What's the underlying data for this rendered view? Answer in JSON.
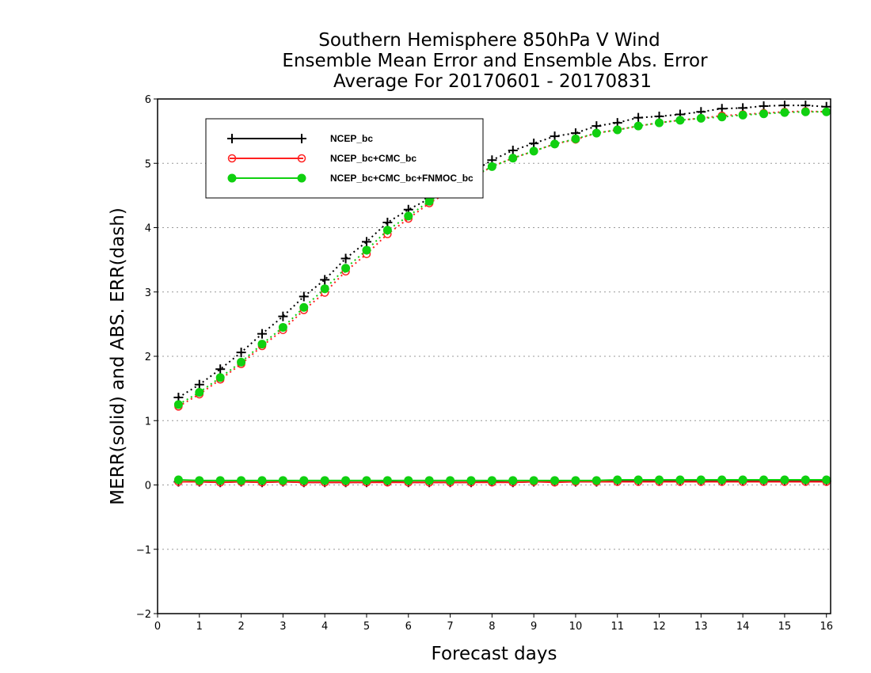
{
  "chart_data": {
    "type": "line",
    "title": [
      "Southern Hemisphere 850hPa V Wind",
      "Ensemble Mean Error and Ensemble Abs. Error",
      "Average For 20170601 - 20170831"
    ],
    "xlabel": "Forecast days",
    "ylabel": "MERR(solid) and ABS. ERR(dash)",
    "xlim": [
      0,
      16.1
    ],
    "ylim": [
      -2,
      6
    ],
    "xticks": [
      0,
      1,
      2,
      3,
      4,
      5,
      6,
      7,
      8,
      9,
      10,
      11,
      12,
      13,
      14,
      15,
      16
    ],
    "yticks": [
      -2,
      -1,
      0,
      1,
      2,
      3,
      4,
      5,
      6
    ],
    "grid": "horizontal dotted",
    "legend_position": "top-left",
    "x": [
      0.5,
      1,
      1.5,
      2,
      2.5,
      3,
      3.5,
      4,
      4.5,
      5,
      5.5,
      6,
      6.5,
      7,
      7.5,
      8,
      8.5,
      9,
      9.5,
      10,
      10.5,
      11,
      11.5,
      12,
      12.5,
      13,
      13.5,
      14,
      14.5,
      15,
      15.5,
      16
    ],
    "series": [
      {
        "name": "NCEP_bc",
        "color": "#000000",
        "marker": "plus",
        "merr": [
          0.05,
          0.05,
          0.04,
          0.05,
          0.04,
          0.05,
          0.04,
          0.04,
          0.04,
          0.04,
          0.05,
          0.04,
          0.04,
          0.04,
          0.04,
          0.05,
          0.04,
          0.05,
          0.05,
          0.05,
          0.05,
          0.06,
          0.06,
          0.06,
          0.06,
          0.06,
          0.06,
          0.06,
          0.06,
          0.06,
          0.06,
          0.06
        ],
        "abserr": [
          1.36,
          1.56,
          1.8,
          2.06,
          2.35,
          2.62,
          2.93,
          3.19,
          3.52,
          3.78,
          4.08,
          4.28,
          4.45,
          4.62,
          4.85,
          5.05,
          5.2,
          5.31,
          5.42,
          5.47,
          5.58,
          5.63,
          5.71,
          5.73,
          5.76,
          5.8,
          5.85,
          5.86,
          5.89,
          5.9,
          5.9,
          5.88
        ]
      },
      {
        "name": "NCEP_bc+CMC_bc",
        "color": "#ff2020",
        "marker": "open-circle",
        "merr": [
          0.05,
          0.05,
          0.04,
          0.05,
          0.04,
          0.05,
          0.04,
          0.04,
          0.04,
          0.04,
          0.04,
          0.04,
          0.04,
          0.04,
          0.04,
          0.04,
          0.04,
          0.05,
          0.04,
          0.05,
          0.05,
          0.05,
          0.05,
          0.05,
          0.05,
          0.05,
          0.05,
          0.05,
          0.05,
          0.05,
          0.05,
          0.05
        ],
        "abserr": [
          1.22,
          1.41,
          1.64,
          1.88,
          2.16,
          2.41,
          2.72,
          2.99,
          3.32,
          3.59,
          3.9,
          4.14,
          4.38,
          4.57,
          4.76,
          4.95,
          5.08,
          5.19,
          5.3,
          5.37,
          5.47,
          5.52,
          5.58,
          5.63,
          5.67,
          5.7,
          5.74,
          5.76,
          5.78,
          5.8,
          5.81,
          5.8
        ]
      },
      {
        "name": "NCEP_bc+CMC_bc+FNMOC_bc",
        "color": "#10d010",
        "marker": "filled-circle",
        "merr": [
          0.08,
          0.07,
          0.07,
          0.07,
          0.07,
          0.07,
          0.07,
          0.07,
          0.07,
          0.07,
          0.07,
          0.07,
          0.07,
          0.07,
          0.07,
          0.07,
          0.07,
          0.07,
          0.07,
          0.07,
          0.07,
          0.08,
          0.08,
          0.08,
          0.08,
          0.08,
          0.08,
          0.08,
          0.08,
          0.08,
          0.08,
          0.08
        ],
        "abserr": [
          1.25,
          1.44,
          1.67,
          1.91,
          2.19,
          2.45,
          2.76,
          3.05,
          3.37,
          3.65,
          3.96,
          4.18,
          4.41,
          4.6,
          4.78,
          4.95,
          5.08,
          5.19,
          5.3,
          5.38,
          5.47,
          5.52,
          5.58,
          5.63,
          5.67,
          5.7,
          5.72,
          5.75,
          5.77,
          5.79,
          5.8,
          5.8
        ]
      }
    ]
  }
}
